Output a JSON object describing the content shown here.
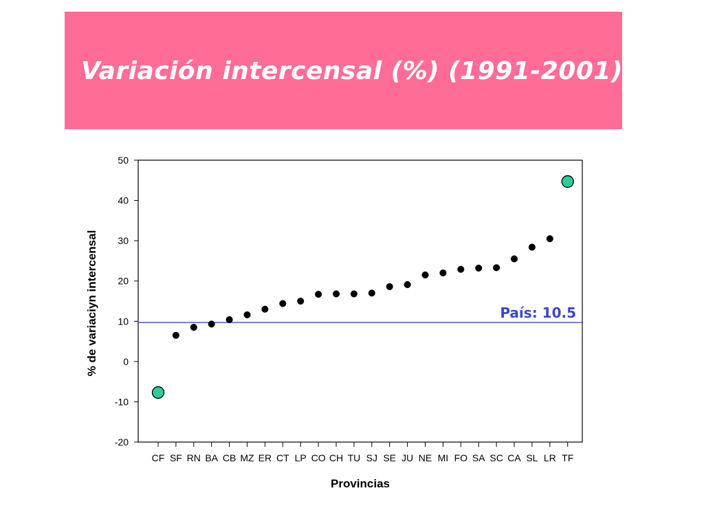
{
  "banner": {
    "title": "Variación intercensal (%) (1991-2001)",
    "background": "#ff6d96"
  },
  "chart_data": {
    "type": "scatter",
    "title": "",
    "xlabel": "Provincias",
    "ylabel": "% de variaciуn intercensal",
    "ylim": [
      -20,
      50
    ],
    "yticks": [
      -20,
      -10,
      0,
      10,
      20,
      30,
      40,
      50
    ],
    "grid": false,
    "categories": [
      "CF",
      "SF",
      "RN",
      "BA",
      "CB",
      "MZ",
      "ER",
      "CT",
      "LP",
      "CO",
      "CH",
      "TU",
      "SJ",
      "SE",
      "JU",
      "NE",
      "MI",
      "FO",
      "SA",
      "SC",
      "CA",
      "SL",
      "LR",
      "TF"
    ],
    "values": [
      -7.7,
      6.5,
      8.5,
      9.3,
      10.4,
      11.6,
      13.0,
      14.4,
      15.0,
      16.7,
      16.8,
      16.8,
      17.0,
      18.6,
      19.1,
      21.5,
      22.0,
      22.9,
      23.2,
      23.3,
      25.5,
      28.4,
      30.5,
      44.7
    ],
    "highlighted": [
      "CF",
      "TF"
    ],
    "highlight_color": "#2ecc9a",
    "point_color": "#000000",
    "reference_line": {
      "value": 10.5,
      "label": "País: 10.5",
      "color": "#3a46c8"
    }
  }
}
